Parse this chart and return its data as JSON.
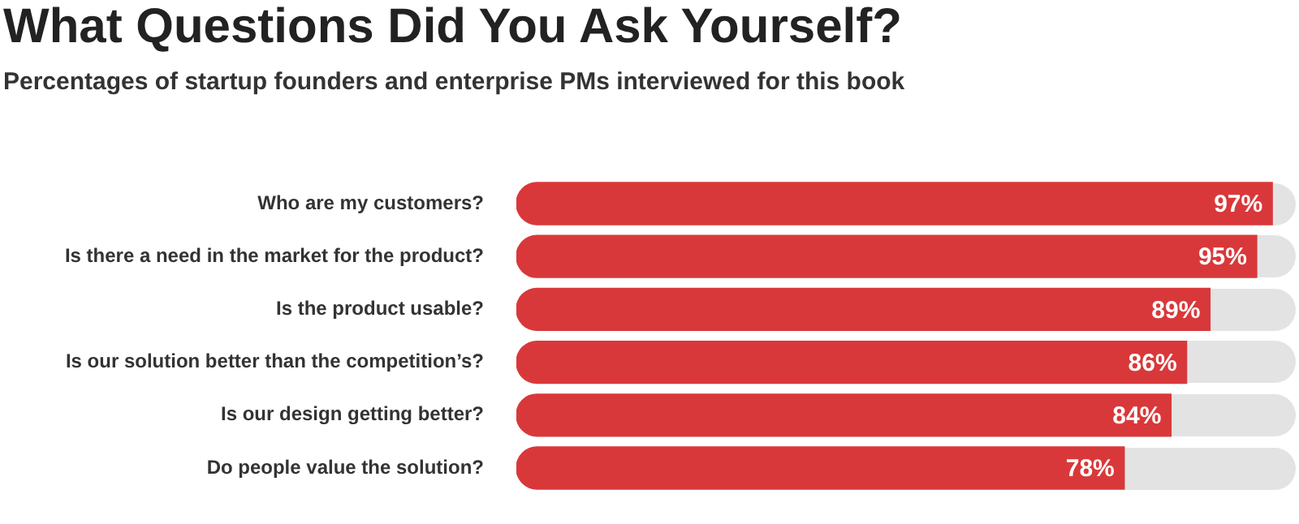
{
  "chart_data": {
    "type": "bar",
    "orientation": "horizontal",
    "title": "What Questions Did You Ask Yourself?",
    "subtitle": "Percentages of startup founders and enterprise PMs interviewed for this book",
    "categories": [
      "Who are my customers?",
      "Is there a need in the market for the product?",
      "Is the product usable?",
      "Is our solution better than the competition’s?",
      "Is our design getting better?",
      "Do people value the solution?"
    ],
    "values": [
      97,
      95,
      89,
      86,
      84,
      78
    ],
    "value_labels": [
      "97%",
      "95%",
      "89%",
      "86%",
      "84%",
      "78%"
    ],
    "color": "#d9383a",
    "xlim": [
      0,
      100
    ],
    "tick_labels": "y",
    "legend": false
  }
}
